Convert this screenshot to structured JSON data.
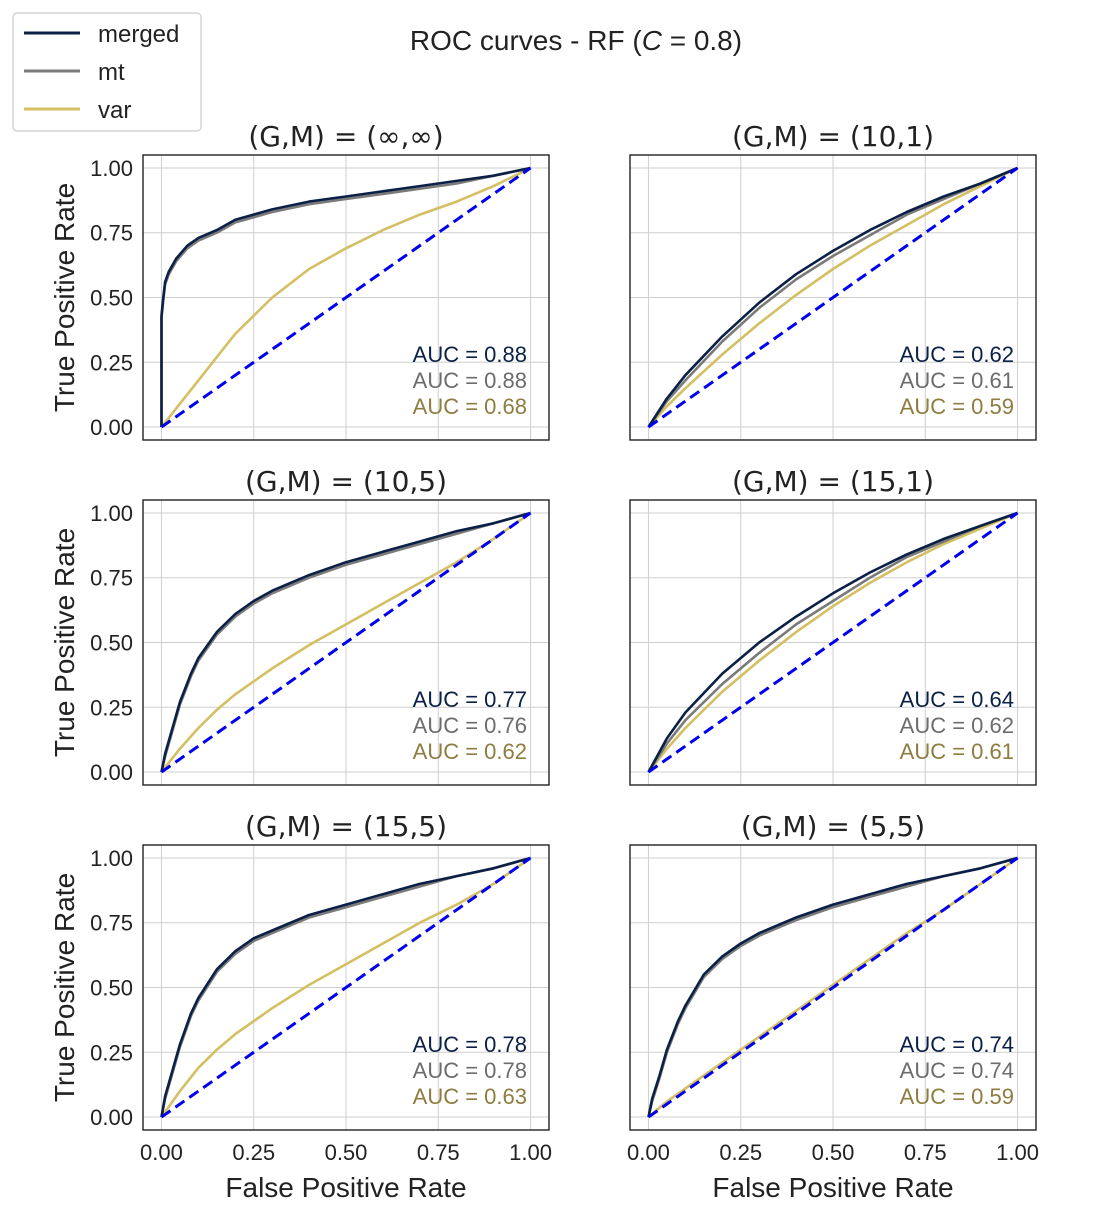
{
  "chart_data": {
    "type": "line",
    "title": "ROC curves - RF (C = 0.8)",
    "title_parts": {
      "prefix": "ROC curves - RF (",
      "var": "C",
      "suffix": " = 0.8)"
    },
    "xlabel": "False Positive Rate",
    "ylabel": "True Positive Rate",
    "xlim": [
      -0.05,
      1.05
    ],
    "ylim": [
      -0.05,
      1.05
    ],
    "xticks": [
      "0.00",
      "0.25",
      "0.50",
      "0.75",
      "1.00"
    ],
    "yticks": [
      "0.00",
      "0.25",
      "0.50",
      "0.75",
      "1.00"
    ],
    "grid": true,
    "legend": {
      "position": "top-left",
      "entries": [
        {
          "name": "merged",
          "color": "#0b2046"
        },
        {
          "name": "mt",
          "color": "#7a7a7a"
        },
        {
          "name": "var",
          "color": "#d4bf63"
        }
      ]
    },
    "diagonal": {
      "style": "dashed",
      "color": "#0000ee"
    },
    "auc_text_colors": [
      "#0b2046",
      "#6c6c6c",
      "#8e7c40"
    ],
    "panels": [
      {
        "title": "(G,M) = (∞,∞)",
        "auc": [
          "AUC = 0.88",
          "AUC = 0.88",
          "AUC = 0.68"
        ],
        "series": [
          {
            "name": "merged",
            "x": [
              0,
              0,
              0.005,
              0.01,
              0.02,
              0.04,
              0.07,
              0.1,
              0.15,
              0.2,
              0.3,
              0.4,
              0.5,
              0.6,
              0.7,
              0.8,
              0.9,
              1.0
            ],
            "y": [
              0,
              0.43,
              0.5,
              0.56,
              0.6,
              0.65,
              0.7,
              0.73,
              0.76,
              0.8,
              0.84,
              0.87,
              0.89,
              0.91,
              0.93,
              0.95,
              0.97,
              1.0
            ]
          },
          {
            "name": "mt",
            "x": [
              0,
              0,
              0.005,
              0.01,
              0.02,
              0.04,
              0.07,
              0.1,
              0.15,
              0.2,
              0.3,
              0.4,
              0.5,
              0.6,
              0.7,
              0.8,
              0.9,
              1.0
            ],
            "y": [
              0,
              0.42,
              0.49,
              0.55,
              0.59,
              0.64,
              0.69,
              0.72,
              0.75,
              0.79,
              0.83,
              0.86,
              0.88,
              0.9,
              0.92,
              0.94,
              0.97,
              1.0
            ]
          },
          {
            "name": "var",
            "x": [
              0,
              0.05,
              0.1,
              0.15,
              0.2,
              0.3,
              0.4,
              0.5,
              0.6,
              0.7,
              0.8,
              0.9,
              1.0
            ],
            "y": [
              0,
              0.09,
              0.18,
              0.27,
              0.36,
              0.5,
              0.61,
              0.69,
              0.76,
              0.82,
              0.87,
              0.93,
              1.0
            ]
          }
        ]
      },
      {
        "title": "(G,M) = (10,1)",
        "auc": [
          "AUC = 0.62",
          "AUC = 0.61",
          "AUC = 0.59"
        ],
        "series": [
          {
            "name": "merged",
            "x": [
              0,
              0.05,
              0.1,
              0.2,
              0.3,
              0.4,
              0.5,
              0.6,
              0.7,
              0.8,
              0.9,
              1.0
            ],
            "y": [
              0,
              0.11,
              0.2,
              0.35,
              0.48,
              0.59,
              0.68,
              0.76,
              0.83,
              0.89,
              0.94,
              1.0
            ]
          },
          {
            "name": "mt",
            "x": [
              0,
              0.05,
              0.1,
              0.2,
              0.3,
              0.4,
              0.5,
              0.6,
              0.7,
              0.8,
              0.9,
              1.0
            ],
            "y": [
              0,
              0.1,
              0.18,
              0.33,
              0.46,
              0.57,
              0.66,
              0.74,
              0.82,
              0.88,
              0.94,
              1.0
            ]
          },
          {
            "name": "var",
            "x": [
              0,
              0.05,
              0.1,
              0.2,
              0.3,
              0.4,
              0.5,
              0.6,
              0.7,
              0.8,
              0.9,
              1.0
            ],
            "y": [
              0,
              0.08,
              0.15,
              0.28,
              0.4,
              0.51,
              0.61,
              0.7,
              0.78,
              0.86,
              0.93,
              1.0
            ]
          }
        ]
      },
      {
        "title": "(G,M) = (10,5)",
        "auc": [
          "AUC = 0.77",
          "AUC = 0.76",
          "AUC = 0.62"
        ],
        "series": [
          {
            "name": "merged",
            "x": [
              0,
              0.01,
              0.03,
              0.05,
              0.08,
              0.1,
              0.15,
              0.2,
              0.25,
              0.3,
              0.4,
              0.5,
              0.6,
              0.7,
              0.8,
              0.9,
              1.0
            ],
            "y": [
              0,
              0.07,
              0.17,
              0.27,
              0.38,
              0.44,
              0.54,
              0.61,
              0.66,
              0.7,
              0.76,
              0.81,
              0.85,
              0.89,
              0.93,
              0.96,
              1.0
            ]
          },
          {
            "name": "mt",
            "x": [
              0,
              0.01,
              0.03,
              0.05,
              0.08,
              0.1,
              0.15,
              0.2,
              0.25,
              0.3,
              0.4,
              0.5,
              0.6,
              0.7,
              0.8,
              0.9,
              1.0
            ],
            "y": [
              0,
              0.06,
              0.16,
              0.26,
              0.37,
              0.43,
              0.53,
              0.6,
              0.65,
              0.69,
              0.75,
              0.8,
              0.84,
              0.88,
              0.92,
              0.96,
              1.0
            ]
          },
          {
            "name": "var",
            "x": [
              0,
              0.05,
              0.1,
              0.15,
              0.2,
              0.3,
              0.4,
              0.5,
              0.6,
              0.7,
              0.8,
              0.9,
              1.0
            ],
            "y": [
              0,
              0.09,
              0.17,
              0.24,
              0.3,
              0.4,
              0.49,
              0.57,
              0.65,
              0.73,
              0.81,
              0.9,
              1.0
            ]
          }
        ]
      },
      {
        "title": "(G,M) = (15,1)",
        "auc": [
          "AUC = 0.64",
          "AUC = 0.62",
          "AUC = 0.61"
        ],
        "series": [
          {
            "name": "merged",
            "x": [
              0,
              0.05,
              0.1,
              0.2,
              0.3,
              0.4,
              0.5,
              0.6,
              0.7,
              0.8,
              0.9,
              1.0
            ],
            "y": [
              0,
              0.13,
              0.23,
              0.38,
              0.5,
              0.6,
              0.69,
              0.77,
              0.84,
              0.9,
              0.95,
              1.0
            ]
          },
          {
            "name": "mt",
            "x": [
              0,
              0.05,
              0.1,
              0.2,
              0.3,
              0.4,
              0.5,
              0.6,
              0.7,
              0.8,
              0.9,
              1.0
            ],
            "y": [
              0,
              0.11,
              0.2,
              0.34,
              0.46,
              0.57,
              0.66,
              0.75,
              0.83,
              0.89,
              0.95,
              1.0
            ]
          },
          {
            "name": "var",
            "x": [
              0,
              0.05,
              0.1,
              0.2,
              0.3,
              0.4,
              0.5,
              0.6,
              0.7,
              0.8,
              0.9,
              1.0
            ],
            "y": [
              0,
              0.09,
              0.17,
              0.31,
              0.43,
              0.54,
              0.64,
              0.73,
              0.81,
              0.88,
              0.94,
              1.0
            ]
          }
        ]
      },
      {
        "title": "(G,M) = (15,5)",
        "auc": [
          "AUC = 0.78",
          "AUC = 0.78",
          "AUC = 0.63"
        ],
        "series": [
          {
            "name": "merged",
            "x": [
              0,
              0.01,
              0.03,
              0.05,
              0.08,
              0.1,
              0.15,
              0.2,
              0.25,
              0.3,
              0.4,
              0.5,
              0.6,
              0.7,
              0.8,
              0.9,
              1.0
            ],
            "y": [
              0,
              0.08,
              0.18,
              0.28,
              0.4,
              0.46,
              0.57,
              0.64,
              0.69,
              0.72,
              0.78,
              0.82,
              0.86,
              0.9,
              0.93,
              0.96,
              1.0
            ]
          },
          {
            "name": "mt",
            "x": [
              0,
              0.01,
              0.03,
              0.05,
              0.08,
              0.1,
              0.15,
              0.2,
              0.25,
              0.3,
              0.4,
              0.5,
              0.6,
              0.7,
              0.8,
              0.9,
              1.0
            ],
            "y": [
              0,
              0.07,
              0.17,
              0.27,
              0.39,
              0.45,
              0.56,
              0.63,
              0.68,
              0.71,
              0.77,
              0.81,
              0.85,
              0.89,
              0.93,
              0.96,
              1.0
            ]
          },
          {
            "name": "var",
            "x": [
              0,
              0.05,
              0.1,
              0.15,
              0.2,
              0.3,
              0.4,
              0.5,
              0.6,
              0.7,
              0.8,
              0.9,
              1.0
            ],
            "y": [
              0,
              0.1,
              0.19,
              0.26,
              0.32,
              0.42,
              0.51,
              0.59,
              0.67,
              0.75,
              0.82,
              0.9,
              1.0
            ]
          }
        ]
      },
      {
        "title": "(G,M) = (5,5)",
        "auc": [
          "AUC = 0.74",
          "AUC = 0.74",
          "AUC = 0.59"
        ],
        "series": [
          {
            "name": "merged",
            "x": [
              0,
              0.01,
              0.03,
              0.05,
              0.08,
              0.1,
              0.15,
              0.2,
              0.25,
              0.3,
              0.4,
              0.5,
              0.6,
              0.7,
              0.8,
              0.9,
              1.0
            ],
            "y": [
              0,
              0.07,
              0.16,
              0.26,
              0.37,
              0.43,
              0.55,
              0.62,
              0.67,
              0.71,
              0.77,
              0.82,
              0.86,
              0.9,
              0.93,
              0.96,
              1.0
            ]
          },
          {
            "name": "mt",
            "x": [
              0,
              0.01,
              0.03,
              0.05,
              0.08,
              0.1,
              0.15,
              0.2,
              0.25,
              0.3,
              0.4,
              0.5,
              0.6,
              0.7,
              0.8,
              0.9,
              1.0
            ],
            "y": [
              0,
              0.06,
              0.15,
              0.25,
              0.36,
              0.42,
              0.54,
              0.61,
              0.66,
              0.7,
              0.76,
              0.81,
              0.85,
              0.89,
              0.93,
              0.96,
              1.0
            ]
          },
          {
            "name": "var",
            "x": [
              0,
              0.05,
              0.1,
              0.15,
              0.2,
              0.3,
              0.4,
              0.5,
              0.6,
              0.7,
              0.8,
              0.9,
              1.0
            ],
            "y": [
              0,
              0.06,
              0.11,
              0.16,
              0.21,
              0.31,
              0.41,
              0.51,
              0.61,
              0.71,
              0.8,
              0.9,
              1.0
            ]
          }
        ]
      }
    ]
  }
}
